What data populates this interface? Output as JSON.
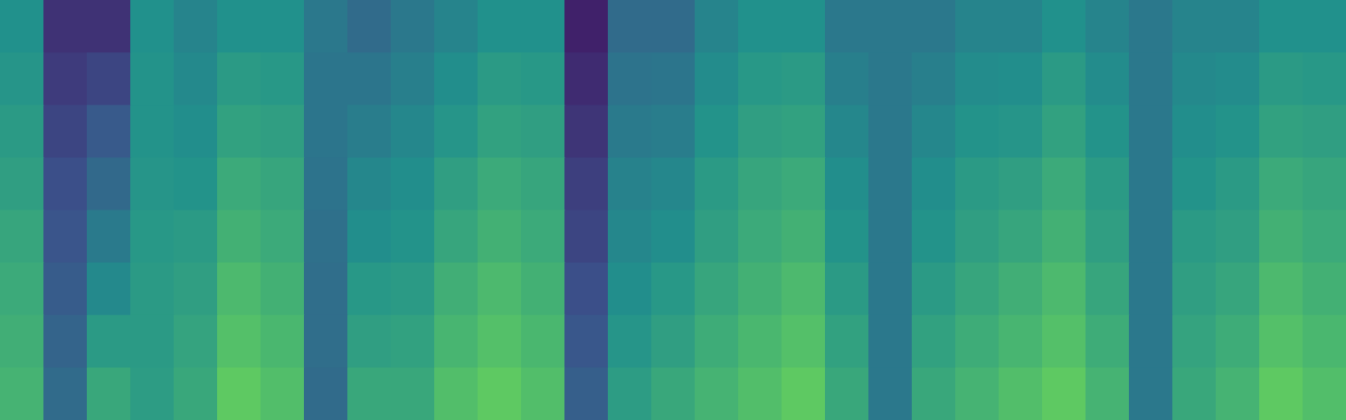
{
  "chart_data": {
    "type": "heatmap",
    "color": "viridis",
    "tick_labels": false,
    "zlim": [
      0,
      1
    ],
    "cells": [
      [
        0.5,
        0.15,
        0.15,
        0.5,
        0.45,
        0.5,
        0.5,
        0.4,
        0.35,
        0.4,
        0.45,
        0.5,
        0.5,
        0.1,
        0.35,
        0.35,
        0.45,
        0.5,
        0.5,
        0.4,
        0.4,
        0.4,
        0.45,
        0.45,
        0.5,
        0.45,
        0.4,
        0.45,
        0.45,
        0.5,
        0.5
      ],
      [
        0.52,
        0.18,
        0.21,
        0.51,
        0.47,
        0.54,
        0.53,
        0.39,
        0.39,
        0.43,
        0.49,
        0.54,
        0.53,
        0.13,
        0.38,
        0.39,
        0.48,
        0.53,
        0.54,
        0.43,
        0.4,
        0.43,
        0.48,
        0.49,
        0.54,
        0.48,
        0.4,
        0.47,
        0.48,
        0.54,
        0.53
      ],
      [
        0.54,
        0.21,
        0.28,
        0.51,
        0.49,
        0.57,
        0.56,
        0.39,
        0.42,
        0.46,
        0.52,
        0.57,
        0.56,
        0.16,
        0.41,
        0.42,
        0.51,
        0.56,
        0.57,
        0.46,
        0.4,
        0.46,
        0.51,
        0.52,
        0.57,
        0.51,
        0.4,
        0.49,
        0.51,
        0.57,
        0.56
      ],
      [
        0.56,
        0.24,
        0.34,
        0.52,
        0.51,
        0.61,
        0.59,
        0.38,
        0.46,
        0.49,
        0.56,
        0.61,
        0.59,
        0.19,
        0.44,
        0.46,
        0.54,
        0.59,
        0.61,
        0.49,
        0.4,
        0.49,
        0.54,
        0.56,
        0.61,
        0.54,
        0.4,
        0.51,
        0.54,
        0.61,
        0.59
      ],
      [
        0.59,
        0.26,
        0.41,
        0.53,
        0.54,
        0.64,
        0.61,
        0.37,
        0.49,
        0.51,
        0.59,
        0.64,
        0.61,
        0.21,
        0.46,
        0.49,
        0.56,
        0.61,
        0.64,
        0.51,
        0.4,
        0.51,
        0.56,
        0.59,
        0.64,
        0.56,
        0.4,
        0.54,
        0.56,
        0.64,
        0.61
      ],
      [
        0.61,
        0.29,
        0.47,
        0.54,
        0.56,
        0.68,
        0.64,
        0.36,
        0.53,
        0.54,
        0.63,
        0.68,
        0.64,
        0.24,
        0.49,
        0.53,
        0.59,
        0.64,
        0.68,
        0.54,
        0.4,
        0.54,
        0.59,
        0.63,
        0.68,
        0.59,
        0.4,
        0.56,
        0.59,
        0.68,
        0.64
      ],
      [
        0.63,
        0.32,
        0.54,
        0.54,
        0.58,
        0.71,
        0.67,
        0.36,
        0.56,
        0.57,
        0.66,
        0.71,
        0.67,
        0.27,
        0.52,
        0.56,
        0.62,
        0.67,
        0.71,
        0.57,
        0.4,
        0.57,
        0.62,
        0.66,
        0.71,
        0.62,
        0.4,
        0.58,
        0.62,
        0.71,
        0.67
      ],
      [
        0.65,
        0.35,
        0.6,
        0.55,
        0.6,
        0.75,
        0.7,
        0.35,
        0.6,
        0.6,
        0.7,
        0.75,
        0.7,
        0.3,
        0.55,
        0.6,
        0.65,
        0.7,
        0.75,
        0.6,
        0.4,
        0.6,
        0.65,
        0.7,
        0.75,
        0.65,
        0.4,
        0.6,
        0.65,
        0.75,
        0.7
      ]
    ]
  }
}
